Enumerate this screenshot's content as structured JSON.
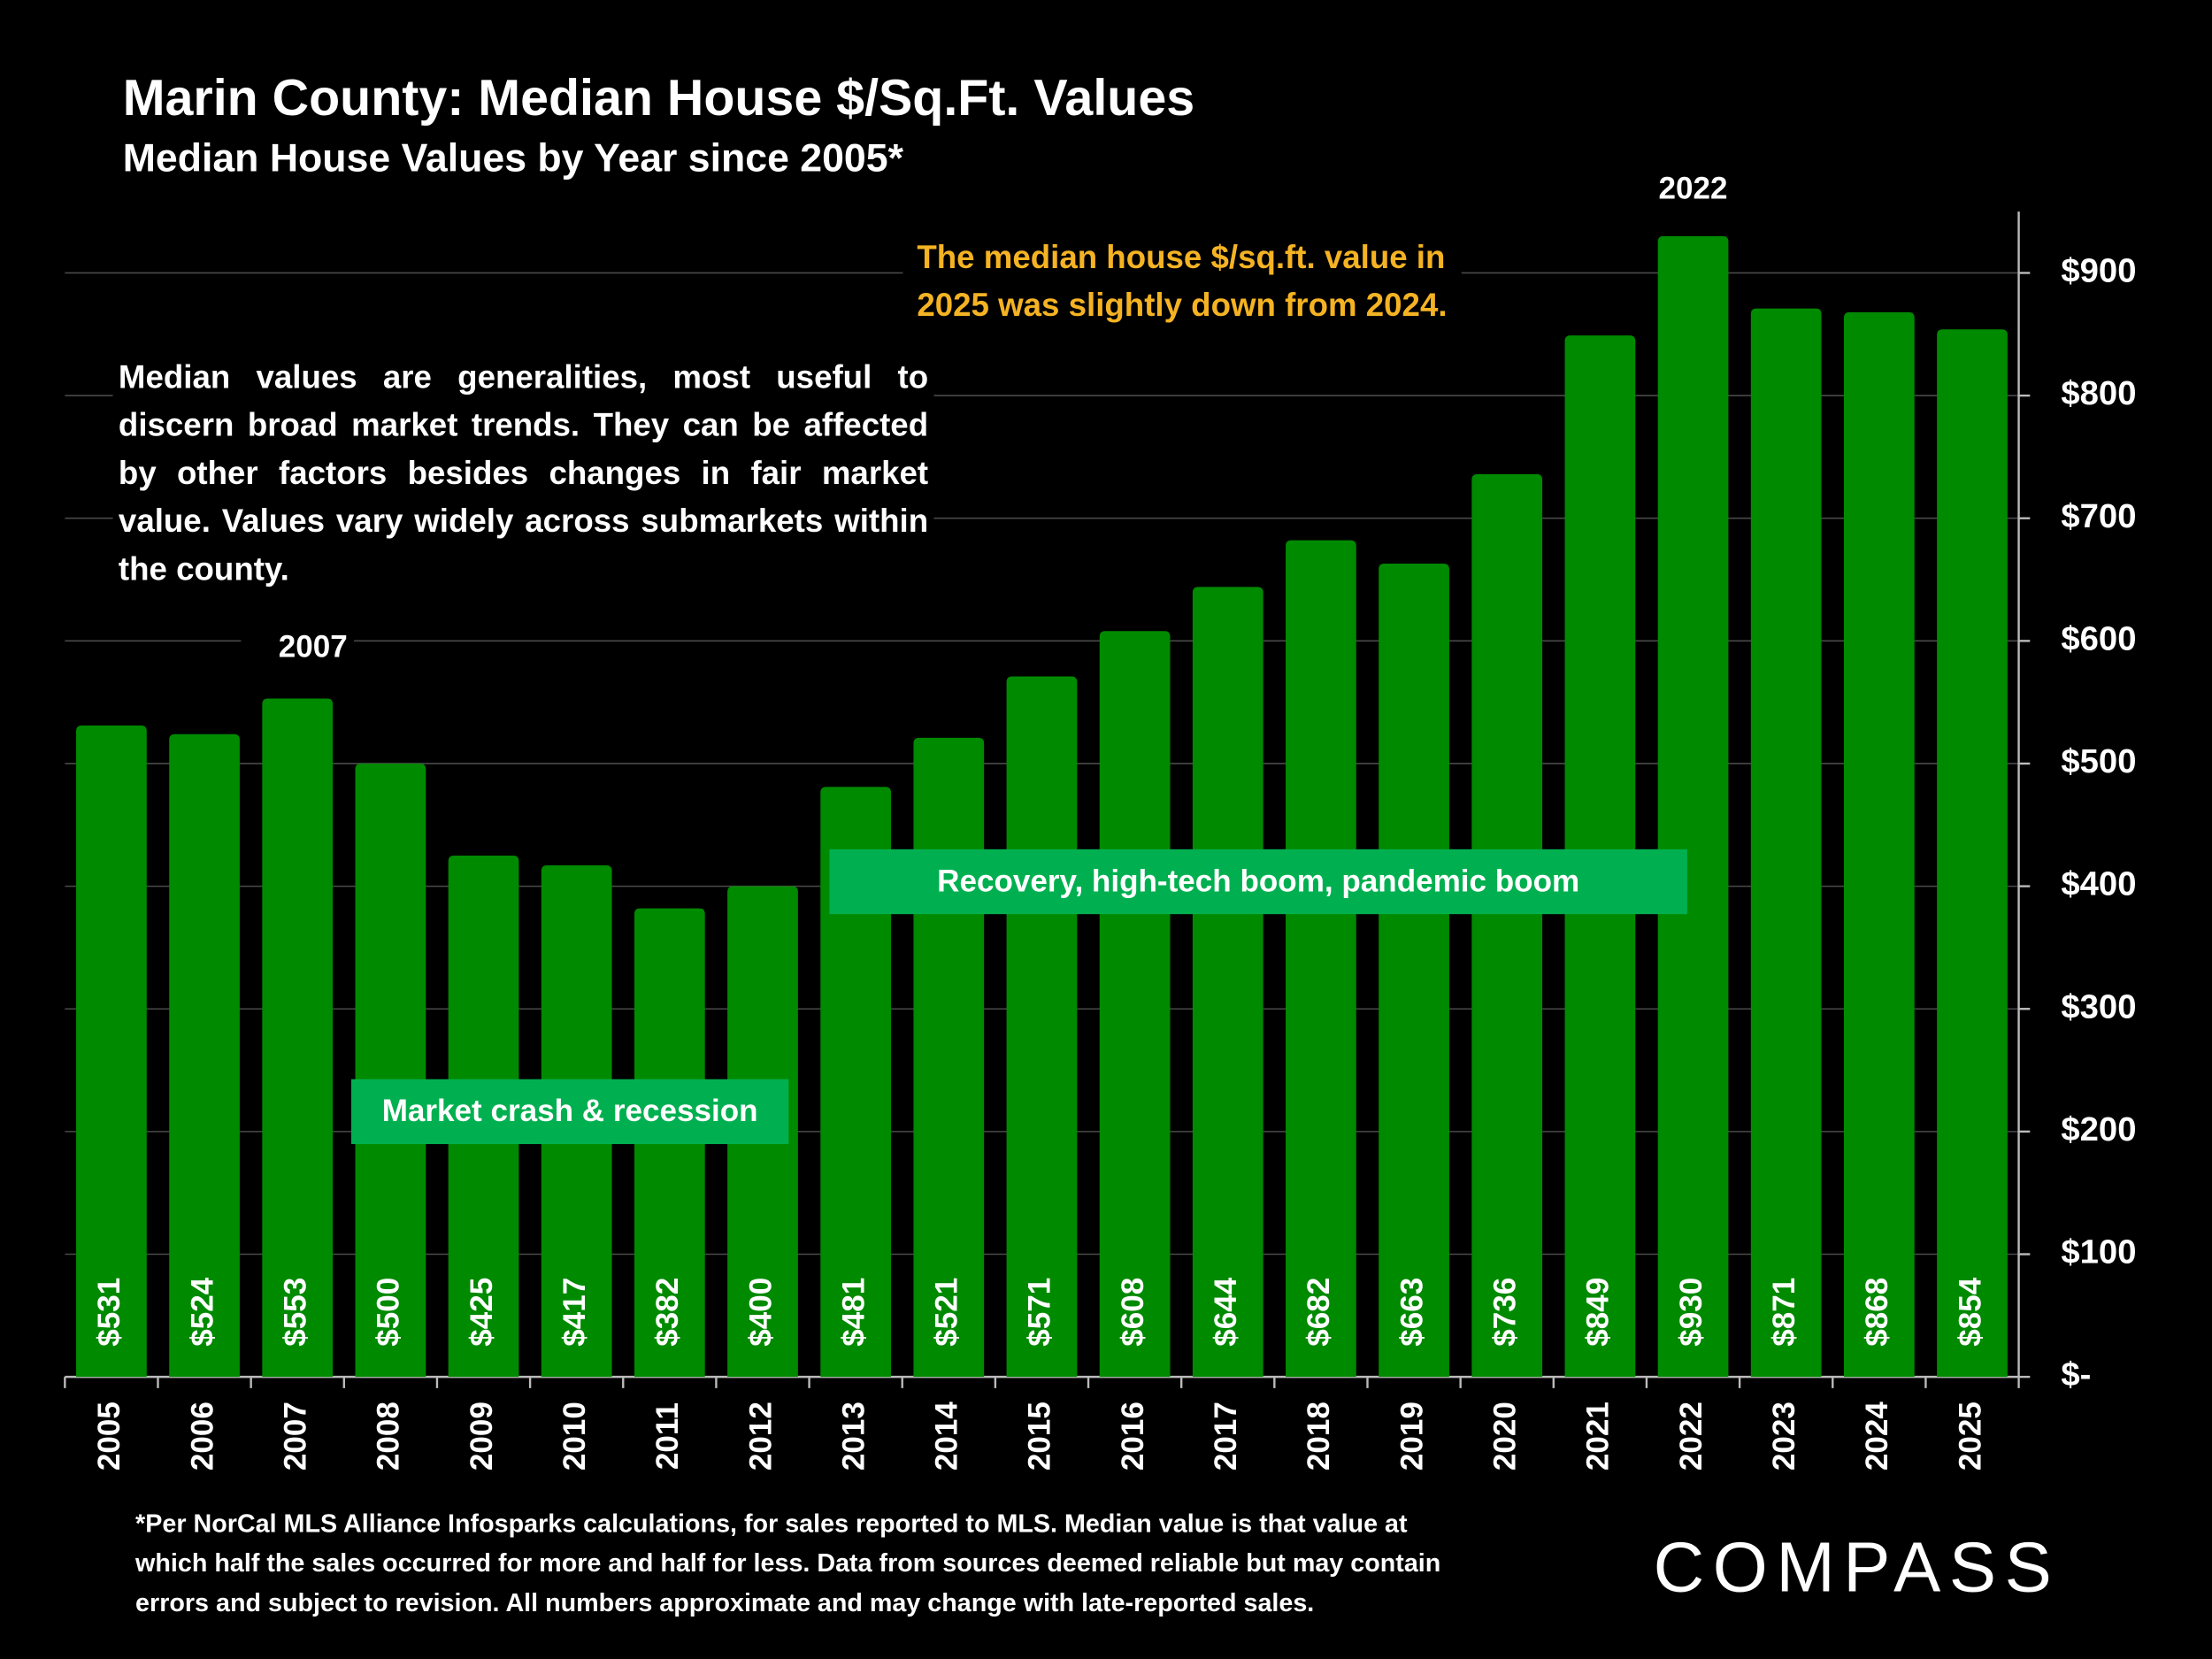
{
  "chart_data": {
    "type": "bar",
    "title": "Marin County: Median House $/Sq.Ft. Values",
    "subtitle": "Median House Values by Year since 2005*",
    "categories": [
      "2005",
      "2006",
      "2007",
      "2008",
      "2009",
      "2010",
      "2011",
      "2012",
      "2013",
      "2014",
      "2015",
      "2016",
      "2017",
      "2018",
      "2019",
      "2020",
      "2021",
      "2022",
      "2023",
      "2024",
      "2025"
    ],
    "values": [
      531,
      524,
      553,
      500,
      425,
      417,
      382,
      400,
      481,
      521,
      571,
      608,
      644,
      682,
      663,
      736,
      849,
      930,
      871,
      868,
      854
    ],
    "value_labels": [
      "$531",
      "$524",
      "$553",
      "$500",
      "$425",
      "$417",
      "$382",
      "$400",
      "$481",
      "$521",
      "$571",
      "$608",
      "$644",
      "$682",
      "$663",
      "$736",
      "$849",
      "$930",
      "$871",
      "$868",
      "$854"
    ],
    "color": "#008a00",
    "ylim": [
      0,
      950
    ],
    "yticks": [
      {
        "value": 0,
        "label": "$-"
      },
      {
        "value": 100,
        "label": "$100"
      },
      {
        "value": 200,
        "label": "$200"
      },
      {
        "value": 300,
        "label": "$300"
      },
      {
        "value": 400,
        "label": "$400"
      },
      {
        "value": 500,
        "label": "$500"
      },
      {
        "value": 600,
        "label": "$600"
      },
      {
        "value": 700,
        "label": "$700"
      },
      {
        "value": 800,
        "label": "$800"
      },
      {
        "value": 900,
        "label": "$900"
      }
    ],
    "y_axis_side": "right",
    "grid": true,
    "annotations": {
      "peak_2007": "2007",
      "peak_2022": "2022",
      "highlight": [
        "The median house $/sq.ft. value in",
        "2025 was slightly down from 2024."
      ],
      "note": "Median values are generalities, most useful to discern broad market trends. They can be affected by other factors besides changes in fair market value. Values vary widely across submarkets within the county.",
      "crash": "Market crash & recession",
      "recovery": "Recovery, high-tech boom, pandemic boom"
    },
    "footnote": [
      "*Per NorCal MLS Alliance Infosparks calculations, for sales reported to MLS. Median value is that value at",
      "which half the sales occurred for more and half for less. Data from sources deemed reliable but may contain",
      "errors and subject to revision. All numbers approximate and may change with late-reported sales."
    ],
    "logo": "COMPASS"
  }
}
